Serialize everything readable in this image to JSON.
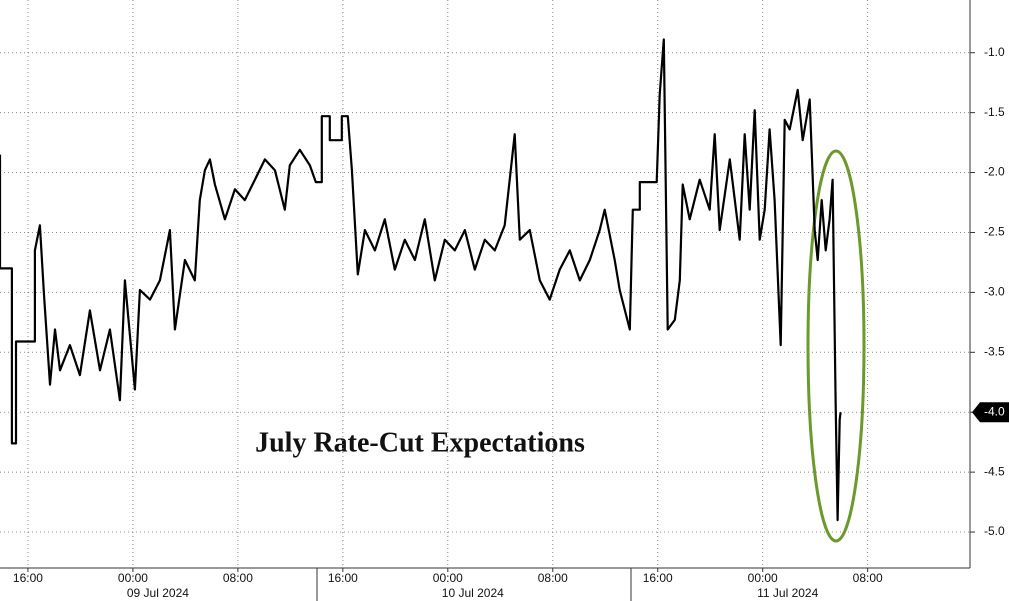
{
  "chart_data": {
    "type": "line",
    "annotation": "July Rate-Cut Expectations",
    "x": [
      -10.13,
      -10.13,
      -9.22,
      -9.22,
      -8.91,
      -8.91,
      -7.47,
      -7.47,
      -7.09,
      -6.78,
      -6.32,
      -5.94,
      -5.56,
      -4.8,
      -4.04,
      -3.28,
      -2.51,
      -1.75,
      -0.99,
      -0.61,
      0.15,
      0.53,
      1.3,
      2.06,
      2.82,
      3.2,
      3.96,
      4.72,
      5.1,
      5.49,
      5.87,
      6.25,
      7.01,
      7.77,
      8.53,
      9.3,
      10.06,
      10.82,
      11.58,
      11.96,
      12.72,
      13.49,
      13.94,
      14.4,
      14.4,
      15.01,
      15.01,
      15.92,
      15.92,
      16.38,
      16.69,
      17.14,
      17.68,
      18.44,
      19.2,
      19.96,
      20.72,
      21.49,
      22.25,
      23.01,
      23.77,
      24.53,
      25.3,
      26.06,
      26.82,
      27.58,
      28.34,
      29.1,
      29.49,
      30.25,
      31.01,
      31.77,
      32.53,
      33.3,
      34.06,
      34.82,
      35.58,
      35.96,
      36.72,
      37.1,
      37.87,
      38.1,
      38.63,
      38.63,
      39.92,
      40.15,
      40.46,
      40.76,
      41.3,
      41.68,
      41.9,
      42.44,
      43.2,
      43.96,
      44.34,
      44.72,
      45.49,
      46.25,
      46.63,
      47.01,
      47.39,
      47.77,
      48.15,
      48.53,
      48.91,
      49.37,
      49.68,
      50.06,
      50.67,
      51.05,
      51.58,
      51.96,
      52.19,
      52.5,
      52.8,
      53.1,
      53.33,
      53.56,
      53.71,
      53.87,
      53.94
    ],
    "series": [
      {
        "color": "#000000",
        "values": [
          -1.85,
          -2.8,
          -2.8,
          -4.26,
          -4.26,
          -3.41,
          -3.41,
          -2.65,
          -2.44,
          -3.02,
          -3.77,
          -3.31,
          -3.65,
          -3.44,
          -3.69,
          -3.15,
          -3.65,
          -3.31,
          -3.9,
          -2.9,
          -3.81,
          -2.98,
          -3.06,
          -2.9,
          -2.48,
          -3.31,
          -2.73,
          -2.9,
          -2.23,
          -1.98,
          -1.89,
          -2.1,
          -2.39,
          -2.14,
          -2.23,
          -2.06,
          -1.89,
          -1.98,
          -2.31,
          -1.94,
          -1.81,
          -1.94,
          -2.08,
          -2.08,
          -1.53,
          -1.53,
          -1.73,
          -1.73,
          -1.53,
          -1.53,
          -1.98,
          -2.85,
          -2.48,
          -2.65,
          -2.39,
          -2.81,
          -2.56,
          -2.73,
          -2.39,
          -2.9,
          -2.56,
          -2.65,
          -2.48,
          -2.81,
          -2.56,
          -2.65,
          -2.44,
          -1.68,
          -2.56,
          -2.48,
          -2.9,
          -3.06,
          -2.81,
          -2.65,
          -2.9,
          -2.73,
          -2.48,
          -2.31,
          -2.73,
          -2.98,
          -3.31,
          -2.31,
          -2.31,
          -2.08,
          -2.08,
          -1.35,
          -0.89,
          -3.31,
          -3.23,
          -2.9,
          -2.1,
          -2.39,
          -2.06,
          -2.31,
          -1.68,
          -2.48,
          -1.89,
          -2.56,
          -1.68,
          -2.31,
          -1.48,
          -2.56,
          -2.31,
          -1.64,
          -2.23,
          -3.44,
          -1.56,
          -1.64,
          -1.31,
          -1.73,
          -1.39,
          -2.48,
          -2.73,
          -2.23,
          -2.65,
          -2.39,
          -2.06,
          -3.9,
          -4.9,
          -4.06,
          -4.0
        ]
      }
    ],
    "xlim": [
      -10.13,
      63.8
    ],
    "ylim": [
      -5.3,
      -0.56
    ],
    "xticks": [
      {
        "value": -8,
        "label": "16:00"
      },
      {
        "value": 0,
        "label": "00:00"
      },
      {
        "value": 8,
        "label": "08:00"
      },
      {
        "value": 16,
        "label": "16:00"
      },
      {
        "value": 24,
        "label": "00:00"
      },
      {
        "value": 32,
        "label": "08:00"
      },
      {
        "value": 40,
        "label": "16:00"
      },
      {
        "value": 48,
        "label": "00:00"
      },
      {
        "value": 56,
        "label": "08:00"
      }
    ],
    "yticks": [
      {
        "value": -1,
        "label": "-1.0"
      },
      {
        "value": -1.5,
        "label": "-1.5"
      },
      {
        "value": -2,
        "label": "-2.0"
      },
      {
        "value": -2.5,
        "label": "-2.5"
      },
      {
        "value": -3,
        "label": "-3.0"
      },
      {
        "value": -3.5,
        "label": "-3.5"
      },
      {
        "value": -4,
        "label": "-4.0"
      },
      {
        "value": -4.5,
        "label": "-4.5"
      },
      {
        "value": -5,
        "label": "-5.0"
      }
    ],
    "dates": [
      "09 Jul 2024",
      "10 Jul 2024",
      "11 Jul 2024"
    ],
    "grid": true
  }
}
